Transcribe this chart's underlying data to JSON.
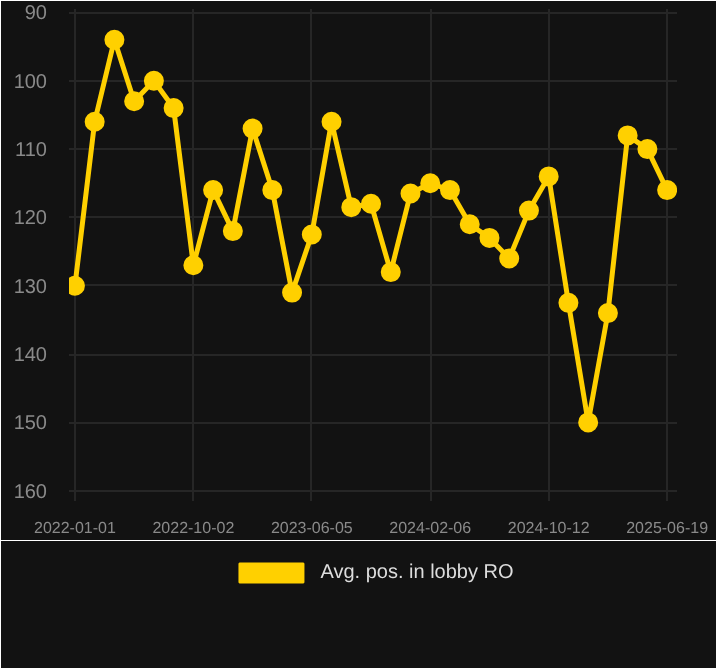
{
  "chart_data": {
    "type": "line",
    "categories": [
      "2022-01-01",
      null,
      null,
      null,
      null,
      null,
      "2022-10-02",
      null,
      null,
      null,
      null,
      null,
      "2023-06-05",
      null,
      null,
      null,
      null,
      null,
      "2024-02-06",
      null,
      null,
      null,
      null,
      null,
      "2024-10-12",
      null,
      null,
      null,
      null,
      null,
      "2025-06-19"
    ],
    "series": [
      {
        "name": "Avg. pos. in lobby RO",
        "color": "#ffd000",
        "values": [
          130,
          106,
          94,
          103,
          100,
          104,
          127,
          116,
          122,
          107,
          116,
          131,
          122.5,
          106,
          118.5,
          118,
          128,
          116.5,
          115,
          116,
          121,
          123,
          126,
          119,
          114,
          132.5,
          150,
          134,
          108,
          110,
          116
        ]
      }
    ],
    "ylim": [
      161.5,
      89.5
    ],
    "yticks": [
      90,
      100,
      110,
      120,
      130,
      140,
      150,
      160
    ],
    "grid": true,
    "legend": "bottom",
    "marker": "circle",
    "line_style": "solid"
  }
}
